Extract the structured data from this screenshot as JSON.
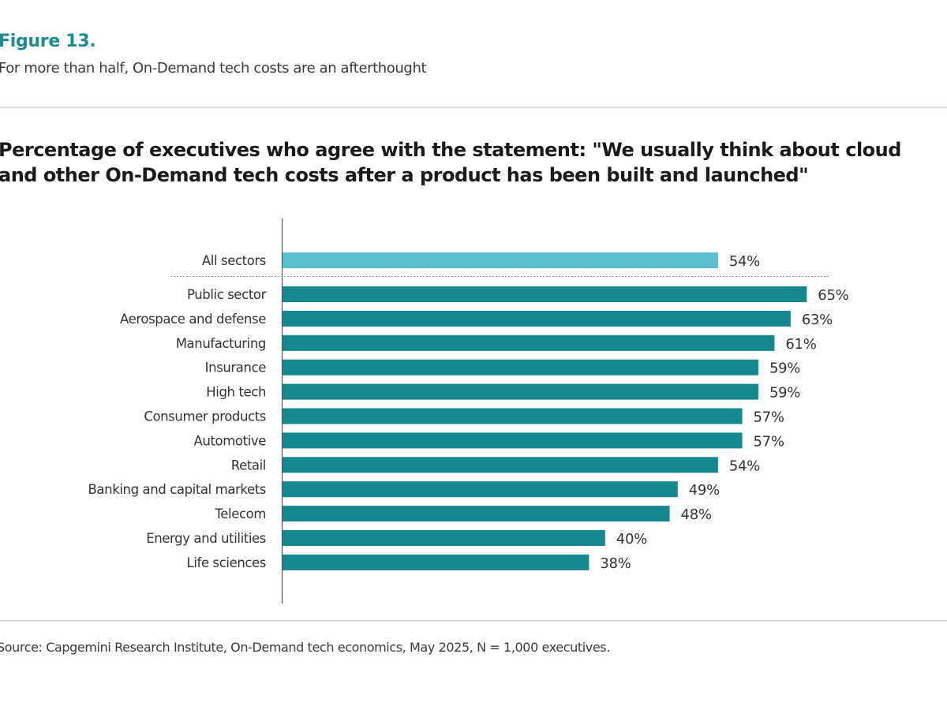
{
  "figure": {
    "number": "Figure 13.",
    "subtitle": "For more than half, On-Demand tech costs are an afterthought",
    "source": "Source: Capgemini Research Institute, On-Demand tech economics, May 2025, N = 1,000 executives."
  },
  "colors": {
    "accent": "#1f8a8f",
    "highlight_bar": "#5bc0d0",
    "bar": "#15878f",
    "text": "#333333"
  },
  "chart_data": {
    "type": "bar",
    "orientation": "horizontal",
    "title": "Percentage of executives who agree with the statement: \"We usually think about cloud and other On-Demand tech costs after a product has been built and launched\"",
    "xlabel": "",
    "ylabel": "",
    "xlim": [
      0,
      100
    ],
    "grid": false,
    "legend": "none",
    "value_suffix": "%",
    "categories": [
      "All sectors",
      "Public sector",
      "Aerospace and defense",
      "Manufacturing",
      "Insurance",
      "High tech",
      "Consumer products",
      "Automotive",
      "Retail",
      "Banking and capital markets",
      "Telecom",
      "Energy and utilities",
      "Life sciences"
    ],
    "values": [
      54,
      65,
      63,
      61,
      59,
      59,
      57,
      57,
      54,
      49,
      48,
      40,
      38
    ],
    "highlighted": [
      "All sectors"
    ],
    "separator_after": "All sectors"
  }
}
